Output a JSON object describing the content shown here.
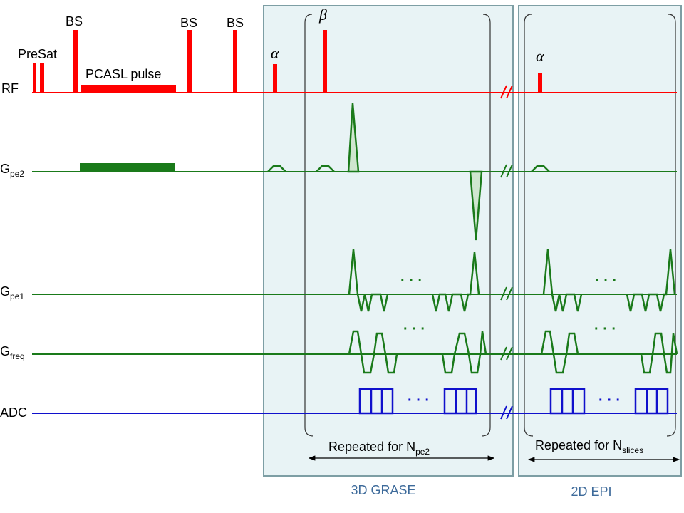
{
  "rows": [
    {
      "name": "RF"
    },
    {
      "name": "G",
      "sub": "pe2"
    },
    {
      "name": "G",
      "sub": "pe1"
    },
    {
      "name": "G",
      "sub": "freq"
    },
    {
      "name": "ADC"
    }
  ],
  "pulses": {
    "presat": "PreSat",
    "bs": [
      "BS",
      "BS",
      "BS"
    ],
    "pcasl": "PCASL pulse"
  },
  "flip_angles": [
    "α",
    "β",
    "α"
  ],
  "ellipsis": "· · ·",
  "blocks": [
    {
      "title": "3D GRASE",
      "repeat": "Repeated for N",
      "repeat_sub": "pe2"
    },
    {
      "title": "2D EPI",
      "repeat": "Repeated for N",
      "repeat_sub": "slices"
    }
  ]
}
